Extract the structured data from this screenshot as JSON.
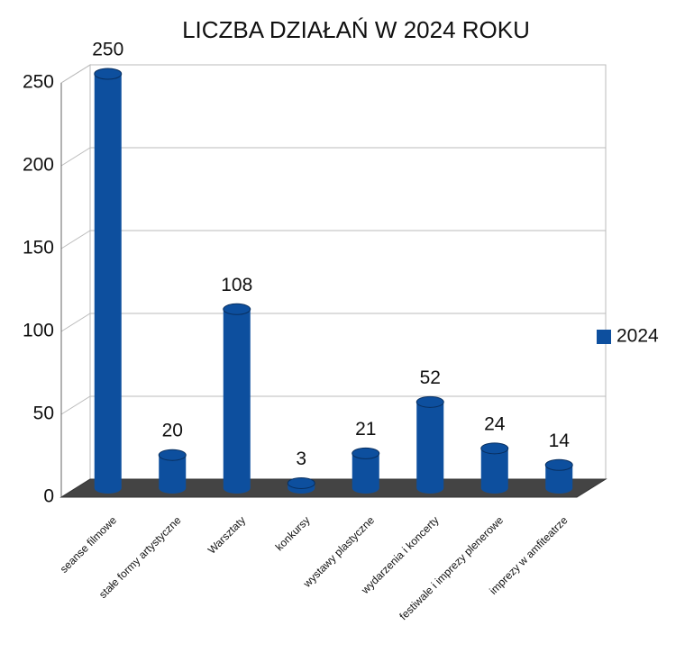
{
  "chart_data": {
    "type": "bar",
    "title": "LICZBA DZIAŁAŃ W 2024 ROKU",
    "categories": [
      "seanse filmowe",
      "stałe formy artystyczne",
      "Warsztaty",
      "konkursy",
      "wystawy plastyczne",
      "wydarzenia i koncerty",
      "festiwale i imprezy plenerowe",
      "imprezy w amfiteatrze"
    ],
    "series": [
      {
        "name": "2024",
        "color": "#0d4f9e",
        "values": [
          250,
          20,
          108,
          3,
          21,
          52,
          24,
          14
        ]
      }
    ],
    "ylim": [
      0,
      250
    ],
    "yticks": [
      0,
      50,
      100,
      150,
      200,
      250
    ],
    "grid": true,
    "legend": "right"
  }
}
